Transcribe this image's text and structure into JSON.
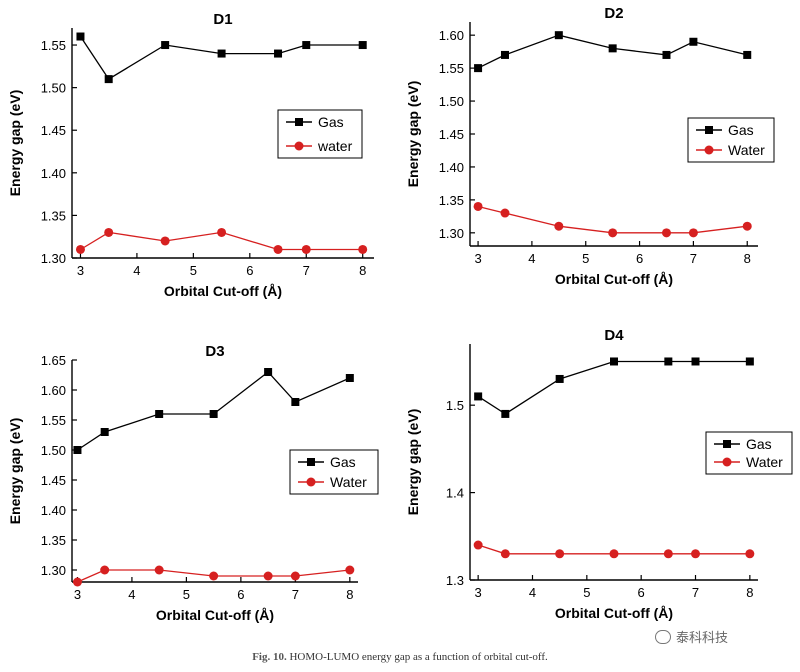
{
  "figure_caption": {
    "label": "Fig. 10.",
    "text": "HOMO-LUMO energy gap as a function of orbital cut-off."
  },
  "watermark": {
    "text": "泰科科技"
  },
  "colors": {
    "gas": "#000000",
    "water": "#d62020"
  },
  "chart_data": [
    {
      "type": "line",
      "title": "D1",
      "xlabel": "Orbital Cut-off (Å)",
      "ylabel": "Energy gap (eV)",
      "x": [
        3,
        3.5,
        4.5,
        5.5,
        6.5,
        7,
        8
      ],
      "xlim": [
        2.85,
        8.2
      ],
      "ylim": [
        1.3,
        1.57
      ],
      "xticks": [
        3,
        4,
        5,
        6,
        7,
        8
      ],
      "xtick_labels": [
        "3",
        "4",
        "5",
        "6",
        "7",
        "8"
      ],
      "yticks": [
        1.3,
        1.35,
        1.4,
        1.45,
        1.5,
        1.55
      ],
      "ytick_labels": [
        "1.30",
        "1.35",
        "1.40",
        "1.45",
        "1.50",
        "1.55"
      ],
      "legend_position": "right",
      "series": [
        {
          "name": "Gas",
          "marker": "square",
          "values": [
            1.56,
            1.51,
            1.55,
            1.54,
            1.54,
            1.55,
            1.55
          ]
        },
        {
          "name": "water",
          "marker": "circle",
          "values": [
            1.31,
            1.33,
            1.32,
            1.33,
            1.31,
            1.31,
            1.31
          ]
        }
      ]
    },
    {
      "type": "line",
      "title": "D2",
      "xlabel": "Orbital Cut-off (Å)",
      "ylabel": "Energy gap (eV)",
      "x": [
        3,
        3.5,
        4.5,
        5.5,
        6.5,
        7,
        8
      ],
      "xlim": [
        2.85,
        8.2
      ],
      "ylim": [
        1.28,
        1.62
      ],
      "xticks": [
        3,
        4,
        5,
        6,
        7,
        8
      ],
      "xtick_labels": [
        "3",
        "4",
        "5",
        "6",
        "7",
        "8"
      ],
      "yticks": [
        1.3,
        1.35,
        1.4,
        1.45,
        1.5,
        1.55,
        1.6
      ],
      "ytick_labels": [
        "1.30",
        "1.35",
        "1.40",
        "1.45",
        "1.50",
        "1.55",
        "1.60"
      ],
      "legend_position": "right",
      "series": [
        {
          "name": "Gas",
          "marker": "square",
          "values": [
            1.55,
            1.57,
            1.6,
            1.58,
            1.57,
            1.59,
            1.57
          ]
        },
        {
          "name": "Water",
          "marker": "circle",
          "values": [
            1.34,
            1.33,
            1.31,
            1.3,
            1.3,
            1.3,
            1.31
          ]
        }
      ]
    },
    {
      "type": "line",
      "title": "D3",
      "xlabel": "Orbital Cut-off (Å)",
      "ylabel": "Energy gap (eV)",
      "x": [
        3,
        3.5,
        4.5,
        5.5,
        6.5,
        7,
        8
      ],
      "xlim": [
        2.9,
        8.15
      ],
      "ylim": [
        1.28,
        1.65
      ],
      "xticks": [
        3,
        4,
        5,
        6,
        7,
        8
      ],
      "xtick_labels": [
        "3",
        "4",
        "5",
        "6",
        "7",
        "8"
      ],
      "yticks": [
        1.3,
        1.35,
        1.4,
        1.45,
        1.5,
        1.55,
        1.6,
        1.65
      ],
      "ytick_labels": [
        "1.30",
        "1.35",
        "1.40",
        "1.45",
        "1.50",
        "1.55",
        "1.60",
        "1.65"
      ],
      "legend_position": "right",
      "series": [
        {
          "name": "Gas",
          "marker": "square",
          "values": [
            1.5,
            1.53,
            1.56,
            1.56,
            1.63,
            1.58,
            1.62
          ]
        },
        {
          "name": "Water",
          "marker": "circle",
          "values": [
            1.28,
            1.3,
            1.3,
            1.29,
            1.29,
            1.29,
            1.3
          ]
        }
      ]
    },
    {
      "type": "line",
      "title": "D4",
      "xlabel": "Orbital Cut-off (Å)",
      "ylabel": "Energy gap (eV)",
      "x": [
        3,
        3.5,
        4.5,
        5.5,
        6.5,
        7,
        8
      ],
      "xlim": [
        2.85,
        8.15
      ],
      "ylim": [
        1.3,
        1.57
      ],
      "xticks": [
        3,
        4,
        5,
        6,
        7,
        8
      ],
      "xtick_labels": [
        "3",
        "4",
        "5",
        "6",
        "7",
        "8"
      ],
      "yticks": [
        1.3,
        1.4,
        1.5
      ],
      "ytick_labels": [
        "1.3",
        "1.4",
        "1.5"
      ],
      "legend_position": "right",
      "series": [
        {
          "name": "Gas",
          "marker": "square",
          "values": [
            1.51,
            1.49,
            1.53,
            1.55,
            1.55,
            1.55,
            1.55
          ]
        },
        {
          "name": "Water",
          "marker": "circle",
          "values": [
            1.34,
            1.33,
            1.33,
            1.33,
            1.33,
            1.33,
            1.33
          ]
        }
      ]
    }
  ]
}
